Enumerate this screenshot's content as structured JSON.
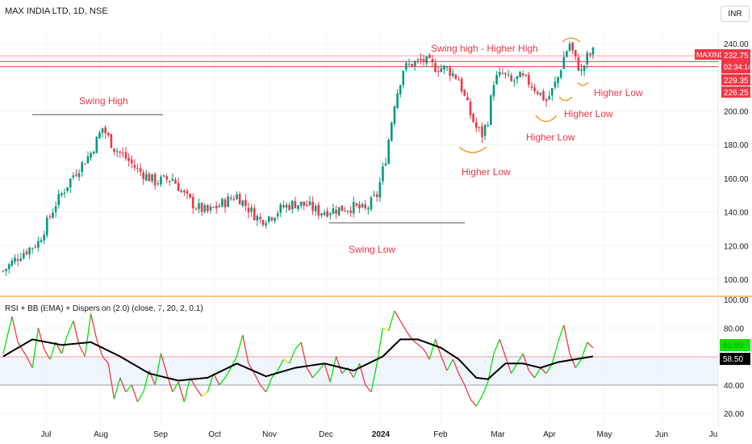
{
  "header": {
    "title": "MAX INDIA LTD, 1D, NSE",
    "currency": "INR"
  },
  "chart_data": [
    {
      "type": "candlestick",
      "symbol": "MAXIND",
      "ylim": [
        90,
        245
      ],
      "y_ticks": [
        "240.00",
        "220.00",
        "200.00",
        "180.00",
        "160.00",
        "140.00",
        "120.00",
        "100.00"
      ],
      "x_tick_labels": [
        "Jul",
        "Aug",
        "Sep",
        "Oct",
        "Nov",
        "Dec",
        "2024",
        "Feb",
        "Mar",
        "Apr",
        "May",
        "Jun",
        "Ju"
      ],
      "price_trend": [
        [
          0,
          105
        ],
        [
          6,
          115
        ],
        [
          12,
          122
        ],
        [
          18,
          145
        ],
        [
          24,
          162
        ],
        [
          30,
          175
        ],
        [
          34,
          190
        ],
        [
          38,
          178
        ],
        [
          42,
          172
        ],
        [
          46,
          165
        ],
        [
          52,
          158
        ],
        [
          58,
          160
        ],
        [
          62,
          150
        ],
        [
          66,
          143
        ],
        [
          70,
          140
        ],
        [
          76,
          146
        ],
        [
          80,
          150
        ],
        [
          84,
          142
        ],
        [
          88,
          135
        ],
        [
          92,
          138
        ],
        [
          96,
          143
        ],
        [
          100,
          145
        ],
        [
          104,
          144
        ],
        [
          108,
          140
        ],
        [
          112,
          141
        ],
        [
          116,
          142
        ],
        [
          120,
          143
        ],
        [
          124,
          141
        ],
        [
          128,
          150
        ],
        [
          131,
          172
        ],
        [
          134,
          205
        ],
        [
          137,
          225
        ],
        [
          140,
          228
        ],
        [
          144,
          230
        ],
        [
          148,
          226
        ],
        [
          152,
          225
        ],
        [
          156,
          219
        ],
        [
          158,
          208
        ],
        [
          160,
          198
        ],
        [
          162,
          190
        ],
        [
          164,
          186
        ],
        [
          166,
          195
        ],
        [
          168,
          218
        ],
        [
          171,
          222
        ],
        [
          174,
          217
        ],
        [
          177,
          220
        ],
        [
          180,
          217
        ],
        [
          183,
          212
        ],
        [
          186,
          206
        ],
        [
          188,
          212
        ],
        [
          190,
          220
        ],
        [
          192,
          232
        ],
        [
          194,
          240
        ],
        [
          196,
          230
        ],
        [
          198,
          223
        ],
        [
          200,
          232
        ],
        [
          202,
          235
        ]
      ],
      "levels": [
        {
          "label": "MAXIND",
          "value": 232.75,
          "color": "#f23645"
        },
        {
          "label": "02:34:14",
          "value": null,
          "color": "#f23645"
        },
        {
          "label": "229.35",
          "value": 229.35,
          "color": "#f23645"
        },
        {
          "label": "226.25",
          "value": 226.25,
          "color": "#f23645"
        }
      ],
      "price_label": "232.75",
      "annotations": [
        {
          "text": "Swing High"
        },
        {
          "text": "Swing Low"
        },
        {
          "text": "Swing high - Higher High"
        },
        {
          "text": "Higher Low"
        },
        {
          "text": "Higher Low"
        },
        {
          "text": "Higher Low"
        },
        {
          "text": "Higher Low"
        }
      ]
    },
    {
      "type": "line",
      "title": "RSI + BB (EMA) + Dispersion (2.0) (close, 7, 20, 2, 0.1)",
      "ylim": [
        15,
        105
      ],
      "y_ticks": [
        "100.00",
        "80.00",
        "60.00",
        "40.00",
        "20.00"
      ],
      "band": [
        40,
        60
      ],
      "series": [
        {
          "values": [
            [
              0,
              62
            ],
            [
              3,
              88
            ],
            [
              5,
              70
            ],
            [
              8,
              60
            ],
            [
              10,
              52
            ],
            [
              12,
              80
            ],
            [
              14,
              65
            ],
            [
              16,
              58
            ],
            [
              18,
              70
            ],
            [
              20,
              62
            ],
            [
              22,
              75
            ],
            [
              24,
              85
            ],
            [
              26,
              68
            ],
            [
              28,
              60
            ],
            [
              30,
              90
            ],
            [
              32,
              72
            ],
            [
              34,
              60
            ],
            [
              36,
              55
            ],
            [
              38,
              30
            ],
            [
              40,
              45
            ],
            [
              42,
              35
            ],
            [
              44,
              40
            ],
            [
              46,
              28
            ],
            [
              48,
              35
            ],
            [
              50,
              50
            ],
            [
              52,
              40
            ],
            [
              54,
              62
            ],
            [
              56,
              48
            ],
            [
              58,
              35
            ],
            [
              60,
              42
            ],
            [
              62,
              28
            ],
            [
              64,
              45
            ],
            [
              66,
              38
            ],
            [
              68,
              32
            ],
            [
              70,
              35
            ],
            [
              72,
              48
            ],
            [
              74,
              40
            ],
            [
              76,
              45
            ],
            [
              78,
              52
            ],
            [
              80,
              60
            ],
            [
              82,
              75
            ],
            [
              84,
              55
            ],
            [
              86,
              48
            ],
            [
              88,
              40
            ],
            [
              90,
              35
            ],
            [
              92,
              45
            ],
            [
              94,
              50
            ],
            [
              96,
              58
            ],
            [
              98,
              55
            ],
            [
              100,
              65
            ],
            [
              102,
              70
            ],
            [
              104,
              52
            ],
            [
              106,
              45
            ],
            [
              108,
              50
            ],
            [
              110,
              55
            ],
            [
              112,
              42
            ],
            [
              114,
              60
            ],
            [
              116,
              48
            ],
            [
              118,
              52
            ],
            [
              120,
              45
            ],
            [
              122,
              55
            ],
            [
              124,
              40
            ],
            [
              126,
              35
            ],
            [
              128,
              55
            ],
            [
              130,
              80
            ],
            [
              132,
              78
            ],
            [
              134,
              92
            ],
            [
              136,
              85
            ],
            [
              138,
              78
            ],
            [
              140,
              72
            ],
            [
              144,
              65
            ],
            [
              146,
              58
            ],
            [
              148,
              72
            ],
            [
              150,
              60
            ],
            [
              152,
              50
            ],
            [
              154,
              58
            ],
            [
              156,
              48
            ],
            [
              158,
              40
            ],
            [
              160,
              30
            ],
            [
              162,
              25
            ],
            [
              164,
              32
            ],
            [
              166,
              42
            ],
            [
              168,
              62
            ],
            [
              170,
              72
            ],
            [
              172,
              60
            ],
            [
              174,
              48
            ],
            [
              176,
              55
            ],
            [
              178,
              62
            ],
            [
              180,
              50
            ],
            [
              182,
              45
            ],
            [
              184,
              52
            ],
            [
              186,
              48
            ],
            [
              188,
              55
            ],
            [
              190,
              70
            ],
            [
              192,
              82
            ],
            [
              194,
              62
            ],
            [
              196,
              52
            ],
            [
              198,
              58
            ],
            [
              200,
              70
            ],
            [
              202,
              66
            ]
          ]
        },
        {
          "values": [
            [
              0,
              60
            ],
            [
              10,
              72
            ],
            [
              20,
              68
            ],
            [
              30,
              70
            ],
            [
              40,
              60
            ],
            [
              50,
              48
            ],
            [
              60,
              43
            ],
            [
              70,
              45
            ],
            [
              80,
              55
            ],
            [
              90,
              46
            ],
            [
              100,
              52
            ],
            [
              110,
              55
            ],
            [
              120,
              50
            ],
            [
              130,
              60
            ],
            [
              136,
              72
            ],
            [
              142,
              72
            ],
            [
              150,
              66
            ],
            [
              156,
              58
            ],
            [
              162,
              45
            ],
            [
              166,
              44
            ],
            [
              172,
              55
            ],
            [
              178,
              55
            ],
            [
              184,
              52
            ],
            [
              190,
              56
            ],
            [
              196,
              58
            ],
            [
              202,
              60
            ]
          ]
        }
      ],
      "last_value": "58.50",
      "last_value_hidden": "61.99"
    }
  ]
}
